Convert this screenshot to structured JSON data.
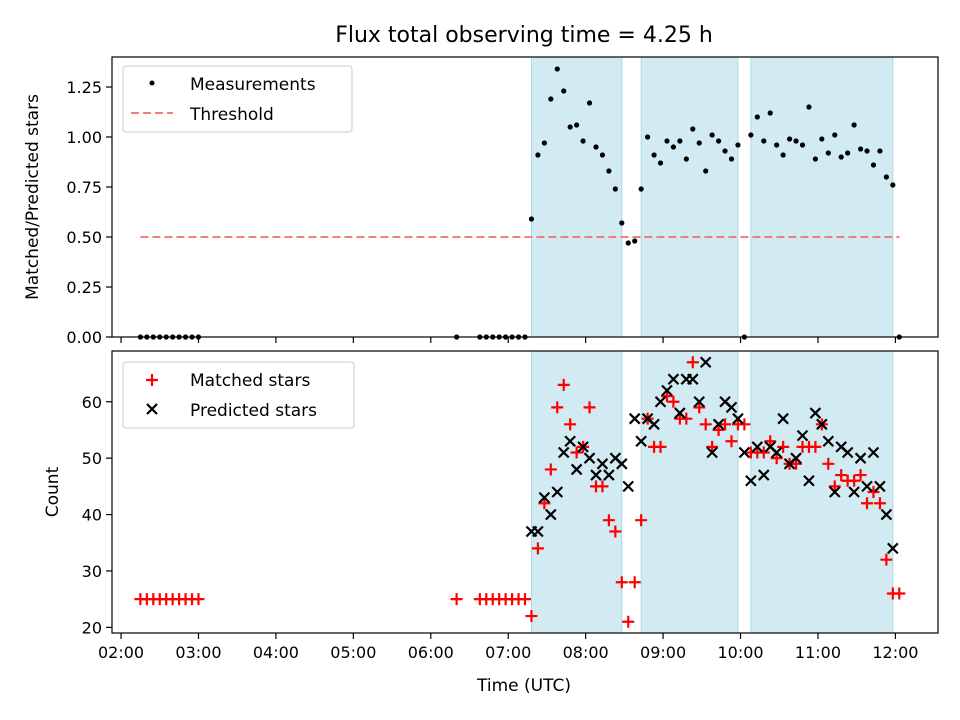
{
  "title": "Flux total observing time = 4.25 h",
  "colors": {
    "measurement": "#000000",
    "threshold": "#f08080",
    "matched": "#ff0000",
    "predicted": "#000000",
    "band": "#add8e6"
  },
  "chart_data": [
    {
      "type": "scatter",
      "ylabel": "Matched/Predicted stars",
      "xlabel": "",
      "ylim": [
        0,
        1.4
      ],
      "yticks": [
        "0.00",
        "0.25",
        "0.50",
        "0.75",
        "1.00",
        "1.25"
      ],
      "ytick_values": [
        0,
        0.25,
        0.5,
        0.75,
        1.0,
        1.25
      ],
      "legend_position": "top-left",
      "legend": [
        "Measurements",
        "Threshold"
      ],
      "series": [
        {
          "name": "Measurements",
          "marker": "dot",
          "points": [
            [
              "02:15",
              0
            ],
            [
              "02:20",
              0
            ],
            [
              "02:25",
              0
            ],
            [
              "02:30",
              0
            ],
            [
              "02:35",
              0
            ],
            [
              "02:40",
              0
            ],
            [
              "02:45",
              0
            ],
            [
              "02:50",
              0
            ],
            [
              "02:55",
              0
            ],
            [
              "03:00",
              0
            ],
            [
              "06:20",
              0
            ],
            [
              "06:38",
              0
            ],
            [
              "06:43",
              0
            ],
            [
              "06:48",
              0
            ],
            [
              "06:53",
              0
            ],
            [
              "06:58",
              0
            ],
            [
              "07:03",
              0
            ],
            [
              "07:08",
              0
            ],
            [
              "07:13",
              0
            ],
            [
              "07:18",
              0.59
            ],
            [
              "07:23",
              0.91
            ],
            [
              "07:28",
              0.97
            ],
            [
              "07:33",
              1.19
            ],
            [
              "07:38",
              1.34
            ],
            [
              "07:43",
              1.23
            ],
            [
              "07:48",
              1.05
            ],
            [
              "07:53",
              1.06
            ],
            [
              "07:58",
              0.98
            ],
            [
              "08:03",
              1.17
            ],
            [
              "08:08",
              0.95
            ],
            [
              "08:13",
              0.91
            ],
            [
              "08:18",
              0.83
            ],
            [
              "08:23",
              0.74
            ],
            [
              "08:28",
              0.57
            ],
            [
              "08:33",
              0.47
            ],
            [
              "08:38",
              0.48
            ],
            [
              "08:43",
              0.74
            ],
            [
              "08:48",
              1.0
            ],
            [
              "08:53",
              0.91
            ],
            [
              "08:58",
              0.87
            ],
            [
              "09:03",
              0.98
            ],
            [
              "09:08",
              0.95
            ],
            [
              "09:13",
              0.98
            ],
            [
              "09:18",
              0.89
            ],
            [
              "09:23",
              1.04
            ],
            [
              "09:28",
              0.97
            ],
            [
              "09:33",
              0.83
            ],
            [
              "09:38",
              1.01
            ],
            [
              "09:43",
              0.98
            ],
            [
              "09:48",
              0.93
            ],
            [
              "09:53",
              0.89
            ],
            [
              "09:58",
              0.96
            ],
            [
              "10:03",
              0
            ],
            [
              "10:08",
              1.01
            ],
            [
              "10:13",
              1.1
            ],
            [
              "10:18",
              0.98
            ],
            [
              "10:23",
              1.12
            ],
            [
              "10:28",
              0.96
            ],
            [
              "10:33",
              0.91
            ],
            [
              "10:38",
              0.99
            ],
            [
              "10:43",
              0.98
            ],
            [
              "10:48",
              0.96
            ],
            [
              "10:53",
              1.15
            ],
            [
              "10:58",
              0.89
            ],
            [
              "11:03",
              0.99
            ],
            [
              "11:08",
              0.92
            ],
            [
              "11:13",
              1.01
            ],
            [
              "11:18",
              0.9
            ],
            [
              "11:23",
              0.92
            ],
            [
              "11:28",
              1.06
            ],
            [
              "11:33",
              0.94
            ],
            [
              "11:38",
              0.93
            ],
            [
              "11:43",
              0.86
            ],
            [
              "11:48",
              0.93
            ],
            [
              "11:53",
              0.8
            ],
            [
              "11:58",
              0.76
            ],
            [
              "12:03",
              0
            ]
          ]
        },
        {
          "name": "Threshold",
          "style": "dashed",
          "points": [
            [
              "02:15",
              0.5
            ],
            [
              "12:03",
              0.5
            ]
          ]
        }
      ],
      "shaded_bands": [
        [
          "07:18",
          "08:28"
        ],
        [
          "08:43",
          "09:58"
        ],
        [
          "10:08",
          "11:58"
        ]
      ]
    },
    {
      "type": "scatter",
      "ylabel": "Count",
      "xlabel": "Time (UTC)",
      "ylim": [
        19,
        69
      ],
      "yticks": [
        "20",
        "30",
        "40",
        "50",
        "60"
      ],
      "ytick_values": [
        20,
        30,
        40,
        50,
        60
      ],
      "xticks": [
        "02:00",
        "03:00",
        "04:00",
        "05:00",
        "06:00",
        "07:00",
        "08:00",
        "09:00",
        "10:00",
        "11:00",
        "12:00"
      ],
      "xlim": [
        "01:53",
        "12:33"
      ],
      "legend_position": "top-left",
      "legend": [
        "Matched stars",
        "Predicted stars"
      ],
      "series": [
        {
          "name": "Matched stars",
          "marker": "plus",
          "points": [
            [
              "02:15",
              25
            ],
            [
              "02:20",
              25
            ],
            [
              "02:25",
              25
            ],
            [
              "02:30",
              25
            ],
            [
              "02:35",
              25
            ],
            [
              "02:40",
              25
            ],
            [
              "02:45",
              25
            ],
            [
              "02:50",
              25
            ],
            [
              "02:55",
              25
            ],
            [
              "03:00",
              25
            ],
            [
              "06:20",
              25
            ],
            [
              "06:38",
              25
            ],
            [
              "06:43",
              25
            ],
            [
              "06:48",
              25
            ],
            [
              "06:53",
              25
            ],
            [
              "06:58",
              25
            ],
            [
              "07:03",
              25
            ],
            [
              "07:08",
              25
            ],
            [
              "07:13",
              25
            ],
            [
              "07:18",
              22
            ],
            [
              "07:23",
              34
            ],
            [
              "07:28",
              42
            ],
            [
              "07:33",
              48
            ],
            [
              "07:38",
              59
            ],
            [
              "07:43",
              63
            ],
            [
              "07:48",
              56
            ],
            [
              "07:53",
              51
            ],
            [
              "07:58",
              52
            ],
            [
              "08:03",
              59
            ],
            [
              "08:08",
              45
            ],
            [
              "08:13",
              45
            ],
            [
              "08:18",
              39
            ],
            [
              "08:23",
              37
            ],
            [
              "08:28",
              28
            ],
            [
              "08:33",
              21
            ],
            [
              "08:38",
              28
            ],
            [
              "08:43",
              39
            ],
            [
              "08:48",
              57
            ],
            [
              "08:53",
              52
            ],
            [
              "08:58",
              52
            ],
            [
              "09:03",
              61
            ],
            [
              "09:08",
              60
            ],
            [
              "09:13",
              57
            ],
            [
              "09:18",
              57
            ],
            [
              "09:23",
              67
            ],
            [
              "09:28",
              59
            ],
            [
              "09:33",
              56
            ],
            [
              "09:38",
              52
            ],
            [
              "09:43",
              55
            ],
            [
              "09:48",
              56
            ],
            [
              "09:53",
              53
            ],
            [
              "09:58",
              56
            ],
            [
              "10:03",
              56
            ],
            [
              "10:08",
              51
            ],
            [
              "10:13",
              51
            ],
            [
              "10:18",
              51
            ],
            [
              "10:23",
              53
            ],
            [
              "10:28",
              50
            ],
            [
              "10:33",
              52
            ],
            [
              "10:38",
              49
            ],
            [
              "10:43",
              49
            ],
            [
              "10:48",
              52
            ],
            [
              "10:53",
              52
            ],
            [
              "10:58",
              52
            ],
            [
              "11:03",
              56
            ],
            [
              "11:08",
              49
            ],
            [
              "11:13",
              45
            ],
            [
              "11:18",
              47
            ],
            [
              "11:23",
              46
            ],
            [
              "11:28",
              46
            ],
            [
              "11:33",
              47
            ],
            [
              "11:38",
              42
            ],
            [
              "11:43",
              44
            ],
            [
              "11:48",
              42
            ],
            [
              "11:53",
              32
            ],
            [
              "11:58",
              26
            ],
            [
              "12:03",
              26
            ]
          ]
        },
        {
          "name": "Predicted stars",
          "marker": "x",
          "points": [
            [
              "07:18",
              37
            ],
            [
              "07:23",
              37
            ],
            [
              "07:28",
              43
            ],
            [
              "07:33",
              40
            ],
            [
              "07:38",
              44
            ],
            [
              "07:43",
              51
            ],
            [
              "07:48",
              53
            ],
            [
              "07:53",
              48
            ],
            [
              "07:58",
              52
            ],
            [
              "08:03",
              50
            ],
            [
              "08:08",
              47
            ],
            [
              "08:13",
              49
            ],
            [
              "08:18",
              47
            ],
            [
              "08:23",
              50
            ],
            [
              "08:28",
              49
            ],
            [
              "08:33",
              45
            ],
            [
              "08:38",
              57
            ],
            [
              "08:43",
              53
            ],
            [
              "08:48",
              57
            ],
            [
              "08:53",
              56
            ],
            [
              "08:58",
              60
            ],
            [
              "09:03",
              62
            ],
            [
              "09:08",
              64
            ],
            [
              "09:13",
              58
            ],
            [
              "09:18",
              64
            ],
            [
              "09:23",
              64
            ],
            [
              "09:28",
              60
            ],
            [
              "09:33",
              67
            ],
            [
              "09:38",
              51
            ],
            [
              "09:43",
              56
            ],
            [
              "09:48",
              60
            ],
            [
              "09:53",
              59
            ],
            [
              "09:58",
              57
            ],
            [
              "10:03",
              51
            ],
            [
              "10:08",
              46
            ],
            [
              "10:13",
              52
            ],
            [
              "10:18",
              47
            ],
            [
              "10:23",
              52
            ],
            [
              "10:28",
              51
            ],
            [
              "10:33",
              57
            ],
            [
              "10:38",
              49
            ],
            [
              "10:43",
              50
            ],
            [
              "10:48",
              54
            ],
            [
              "10:53",
              46
            ],
            [
              "10:58",
              58
            ],
            [
              "11:03",
              56
            ],
            [
              "11:08",
              53
            ],
            [
              "11:13",
              44
            ],
            [
              "11:18",
              52
            ],
            [
              "11:23",
              51
            ],
            [
              "11:28",
              44
            ],
            [
              "11:33",
              50
            ],
            [
              "11:38",
              45
            ],
            [
              "11:43",
              51
            ],
            [
              "11:48",
              45
            ],
            [
              "11:53",
              40
            ],
            [
              "11:58",
              34
            ]
          ]
        }
      ],
      "shaded_bands": [
        [
          "07:18",
          "08:28"
        ],
        [
          "08:43",
          "09:58"
        ],
        [
          "10:08",
          "11:58"
        ]
      ]
    }
  ]
}
